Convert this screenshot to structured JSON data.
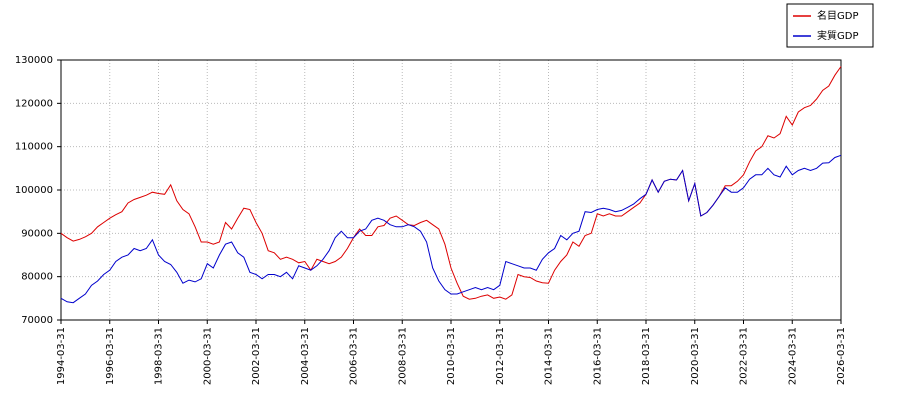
{
  "chart_data": {
    "type": "line",
    "x": [
      "1994-03-31",
      "1994-06-30",
      "1994-09-30",
      "1994-12-31",
      "1995-03-31",
      "1995-06-30",
      "1995-09-30",
      "1995-12-31",
      "1996-03-31",
      "1996-06-30",
      "1996-09-30",
      "1996-12-31",
      "1997-03-31",
      "1997-06-30",
      "1997-09-30",
      "1997-12-31",
      "1998-03-31",
      "1998-06-30",
      "1998-09-30",
      "1998-12-31",
      "1999-03-31",
      "1999-06-30",
      "1999-09-30",
      "1999-12-31",
      "2000-03-31",
      "2000-06-30",
      "2000-09-30",
      "2000-12-31",
      "2001-03-31",
      "2001-06-30",
      "2001-09-30",
      "2001-12-31",
      "2002-03-31",
      "2002-06-30",
      "2002-09-30",
      "2002-12-31",
      "2003-03-31",
      "2003-06-30",
      "2003-09-30",
      "2003-12-31",
      "2004-03-31",
      "2004-06-30",
      "2004-09-30",
      "2004-12-31",
      "2005-03-31",
      "2005-06-30",
      "2005-09-30",
      "2005-12-31",
      "2006-03-31",
      "2006-06-30",
      "2006-09-30",
      "2006-12-31",
      "2007-03-31",
      "2007-06-30",
      "2007-09-30",
      "2007-12-31",
      "2008-03-31",
      "2008-06-30",
      "2008-09-30",
      "2008-12-31",
      "2009-03-31",
      "2009-06-30",
      "2009-09-30",
      "2009-12-31",
      "2010-03-31",
      "2010-06-30",
      "2010-09-30",
      "2010-12-31",
      "2011-03-31",
      "2011-06-30",
      "2011-09-30",
      "2011-12-31",
      "2012-03-31",
      "2012-06-30",
      "2012-09-30",
      "2012-12-31",
      "2013-03-31",
      "2013-06-30",
      "2013-09-30",
      "2013-12-31",
      "2014-03-31",
      "2014-06-30",
      "2014-09-30",
      "2014-12-31",
      "2015-03-31",
      "2015-06-30",
      "2015-09-30",
      "2015-12-31",
      "2016-03-31",
      "2016-06-30",
      "2016-09-30",
      "2016-12-31",
      "2017-03-31",
      "2017-06-30",
      "2017-09-30",
      "2017-12-31",
      "2018-03-31",
      "2018-06-30",
      "2018-09-30",
      "2018-12-31",
      "2019-03-31",
      "2019-06-30",
      "2019-09-30",
      "2019-12-31",
      "2020-03-31",
      "2020-06-30",
      "2020-09-30",
      "2020-12-31",
      "2021-03-31",
      "2021-06-30",
      "2021-09-30",
      "2021-12-31",
      "2022-03-31",
      "2022-06-30",
      "2022-09-30",
      "2022-12-31",
      "2023-03-31",
      "2023-06-30",
      "2023-09-30",
      "2023-12-31",
      "2024-03-31",
      "2024-06-30",
      "2024-09-30",
      "2024-12-31",
      "2025-03-31",
      "2025-06-30",
      "2025-09-30",
      "2025-12-31",
      "2026-03-31"
    ],
    "series": [
      {
        "name": "名目GDP",
        "color": "#dd0000",
        "values": [
          90000,
          89000,
          88200,
          88600,
          89200,
          90000,
          91500,
          92500,
          93500,
          94300,
          95000,
          97000,
          97800,
          98300,
          98800,
          99500,
          99200,
          99000,
          101200,
          97500,
          95500,
          94500,
          91500,
          88000,
          88000,
          87500,
          88000,
          92500,
          91000,
          93500,
          95800,
          95500,
          92500,
          90000,
          86000,
          85500,
          84000,
          84500,
          84000,
          83200,
          83500,
          81500,
          84000,
          83500,
          83000,
          83500,
          84500,
          86500,
          89000,
          91000,
          89500,
          89500,
          91500,
          91800,
          93500,
          94000,
          93000,
          92000,
          91800,
          92500,
          93000,
          92000,
          91000,
          87500,
          82000,
          78500,
          75500,
          74800,
          75000,
          75500,
          75800,
          75000,
          75300,
          74800,
          75800,
          80500,
          80000,
          79800,
          79000,
          78600,
          78500,
          81500,
          83500,
          85000,
          88000,
          87000,
          89500,
          90000,
          94500,
          94000,
          94500,
          94000,
          94000,
          95000,
          96000,
          97000,
          99000,
          102300,
          99500,
          102000,
          102500,
          102300,
          104500,
          97500,
          101500,
          94000,
          94800,
          96500,
          98500,
          101000,
          101000,
          102000,
          103500,
          106500,
          109000,
          110000,
          112500,
          112000,
          113000,
          117000,
          115000,
          118000,
          119000,
          119500,
          121000,
          123000,
          124000,
          126500,
          128500
        ]
      },
      {
        "name": "実質GDP",
        "color": "#0000cc",
        "values": [
          75000,
          74200,
          74000,
          75000,
          76000,
          78000,
          79000,
          80500,
          81500,
          83500,
          84500,
          85000,
          86500,
          86000,
          86500,
          88500,
          85000,
          83500,
          82800,
          81000,
          78500,
          79200,
          78800,
          79500,
          83000,
          82000,
          85000,
          87500,
          88000,
          85500,
          84500,
          81000,
          80500,
          79500,
          80500,
          80500,
          80000,
          81000,
          79500,
          82500,
          82000,
          81500,
          82500,
          84000,
          86000,
          89000,
          90500,
          89000,
          89000,
          90500,
          91000,
          93000,
          93500,
          93000,
          92000,
          91500,
          91500,
          92000,
          91500,
          90500,
          88000,
          82000,
          79000,
          77000,
          76000,
          76000,
          76500,
          77000,
          77500,
          77000,
          77500,
          77000,
          78000,
          83500,
          83000,
          82500,
          82000,
          82000,
          81500,
          84000,
          85500,
          86500,
          89500,
          88500,
          90000,
          90500,
          95000,
          94800,
          95500,
          95800,
          95500,
          95000,
          95300,
          96000,
          96800,
          98000,
          99000,
          102300,
          99500,
          102000,
          102500,
          102300,
          104500,
          97500,
          101500,
          94000,
          94800,
          96500,
          98500,
          100500,
          99500,
          99500,
          100500,
          102500,
          103500,
          103500,
          105000,
          103500,
          103000,
          105500,
          103500,
          104500,
          105000,
          104500,
          105000,
          106200,
          106300,
          107500,
          108000
        ]
      }
    ],
    "xticks": [
      "1994-03-31",
      "1996-03-31",
      "1998-03-31",
      "2000-03-31",
      "2002-03-31",
      "2004-03-31",
      "2006-03-31",
      "2008-03-31",
      "2010-03-31",
      "2012-03-31",
      "2014-03-31",
      "2016-03-31",
      "2018-03-31",
      "2020-03-31",
      "2022-03-31",
      "2024-03-31",
      "2026-03-31"
    ],
    "ylim": [
      70000,
      130000
    ],
    "yticks": [
      70000,
      80000,
      90000,
      100000,
      110000,
      120000,
      130000
    ],
    "grid": true,
    "legend": "upper right"
  }
}
